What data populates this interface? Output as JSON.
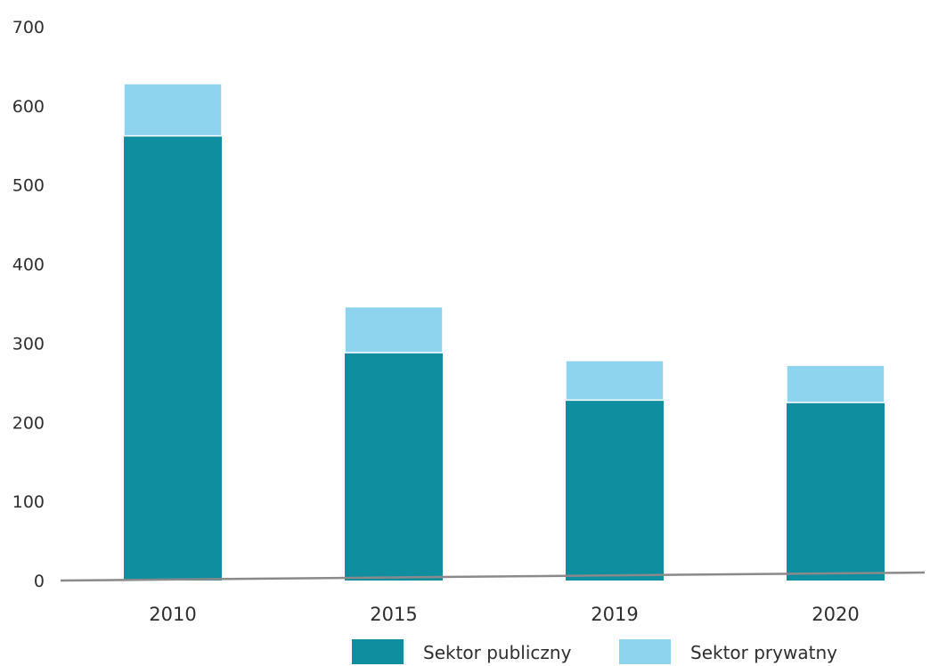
{
  "chart_data": {
    "type": "bar",
    "stacked": true,
    "categories": [
      "2010",
      "2015",
      "2019",
      "2020"
    ],
    "series": [
      {
        "name": "Sektor publiczny",
        "color": "#0f8ea0",
        "values": [
          562,
          288,
          228,
          225
        ]
      },
      {
        "name": "Sektor prywatny",
        "color": "#8fd4ef",
        "values": [
          66,
          58,
          50,
          47
        ]
      }
    ],
    "ylim": [
      0,
      700
    ],
    "yticks": [
      0,
      100,
      200,
      300,
      400,
      500,
      600,
      700
    ],
    "grid": false,
    "legend_position": "bottom",
    "axis_color": "#8a8a8a"
  }
}
